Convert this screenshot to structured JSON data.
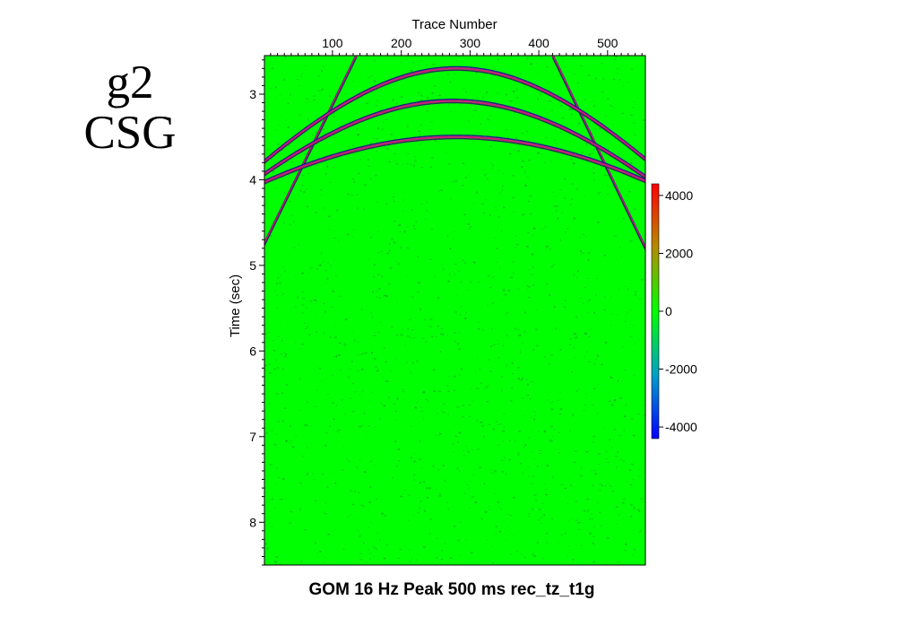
{
  "slide": {
    "title_line1": "g2",
    "title_line2": "CSG"
  },
  "chart_data": {
    "type": "heatmap",
    "title": "GOM 16 Hz Peak 500 ms rec_tz_t1g",
    "xlabel": "Trace Number",
    "ylabel": "Time (sec)",
    "x_axis_position": "top",
    "xlim": [
      1,
      555
    ],
    "ylim": [
      2.55,
      8.5
    ],
    "y_inverted": true,
    "xticks": [
      100,
      200,
      300,
      400,
      500
    ],
    "yticks": [
      3,
      4,
      5,
      6,
      7,
      8
    ],
    "colorbar": {
      "ticks": [
        4000,
        2000,
        0,
        -2000,
        -4000
      ],
      "range": [
        -4400,
        4400
      ],
      "colors": [
        "#0000ff",
        "#00a0c8",
        "#00ff00",
        "#b48c00",
        "#ff0000"
      ]
    },
    "background_color": "#00ff00",
    "events": [
      {
        "name": "direct-left",
        "kind": "linear",
        "x": [
          1,
          135
        ],
        "t": [
          4.75,
          2.55
        ]
      },
      {
        "name": "direct-right",
        "kind": "linear",
        "x": [
          420,
          555
        ],
        "t": [
          2.55,
          4.8
        ]
      },
      {
        "name": "reflection-1",
        "kind": "hyperbola",
        "apex_x": 280,
        "apex_t": 2.7,
        "velocity_traces_per_sec": 105,
        "x": [
          1,
          555
        ]
      },
      {
        "name": "reflection-2",
        "kind": "hyperbola",
        "apex_x": 275,
        "apex_t": 3.08,
        "velocity_traces_per_sec": 112,
        "x": [
          1,
          555
        ]
      },
      {
        "name": "multiple",
        "kind": "hyperbola",
        "apex_x": 280,
        "apex_t": 3.5,
        "velocity_traces_per_sec": 140,
        "x": [
          1,
          555
        ]
      }
    ]
  }
}
